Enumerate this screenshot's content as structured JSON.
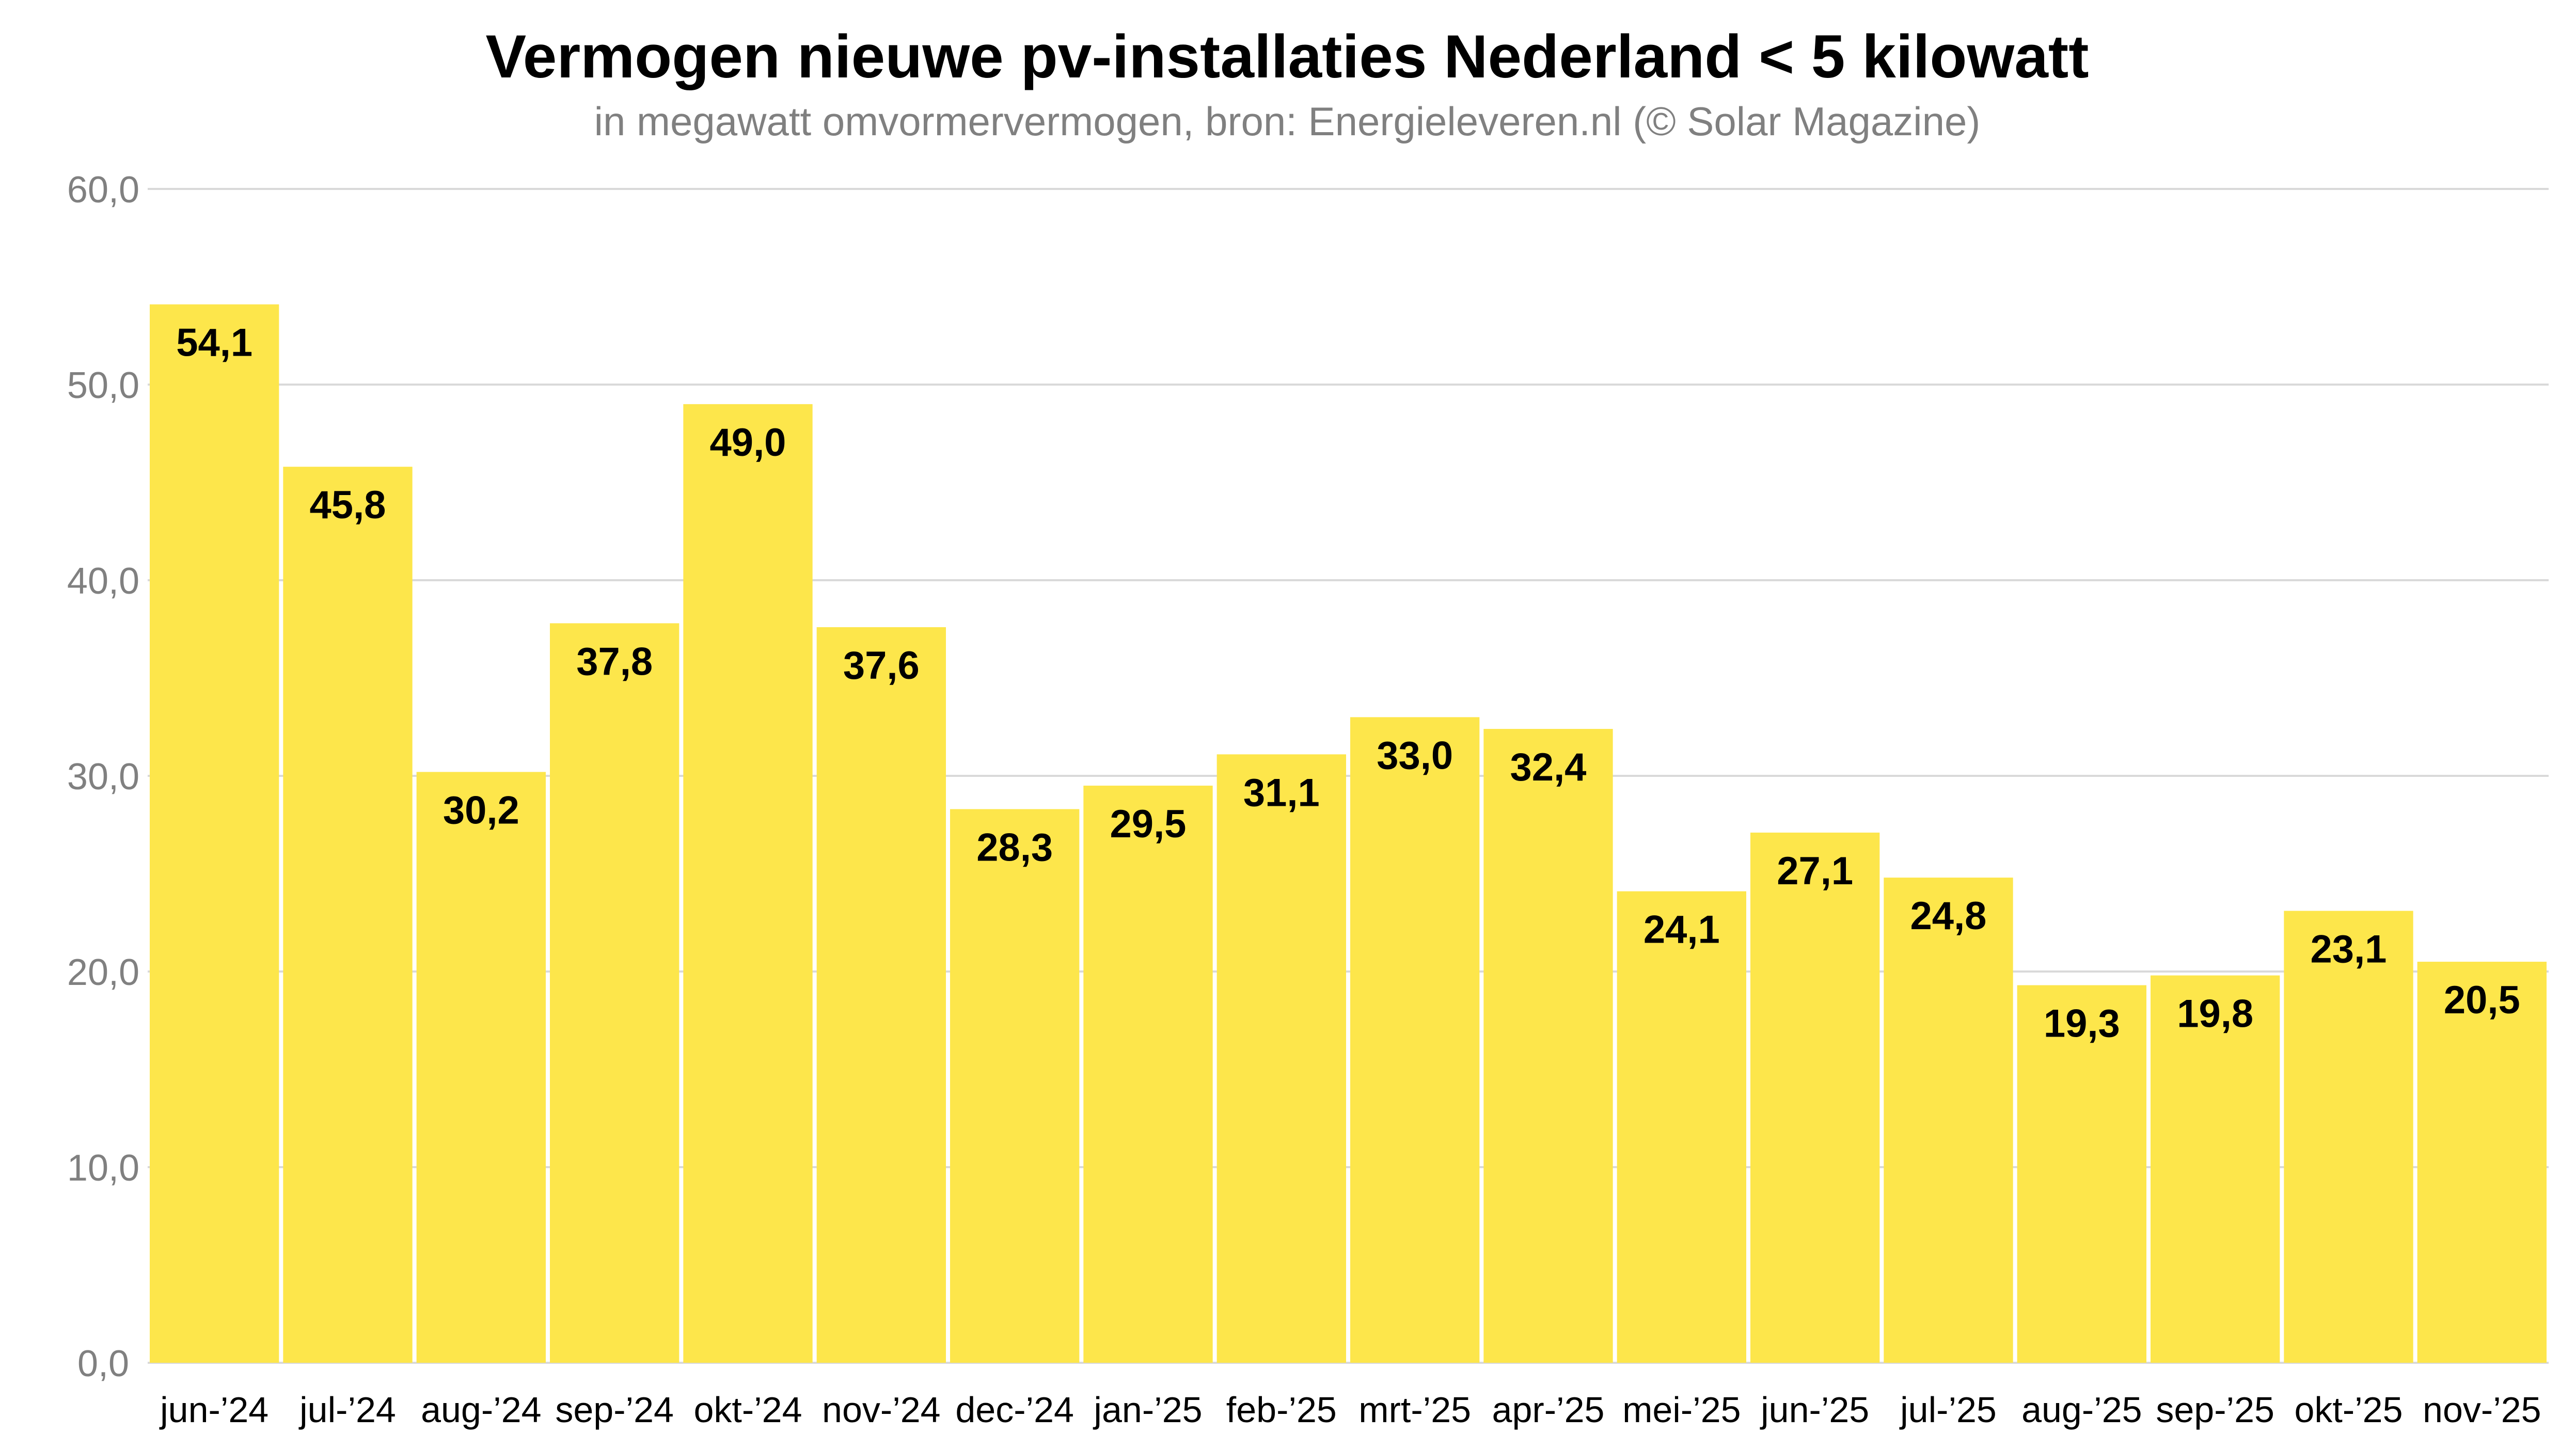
{
  "chart_data": {
    "type": "bar",
    "title": "Vermogen nieuwe pv-installaties Nederland < 5 kilowatt",
    "subtitle": "in megawatt omvormervermogen, bron: Energieleveren.nl (© Solar Magazine)",
    "xlabel": "",
    "ylabel": "",
    "ylim": [
      0,
      60
    ],
    "yticks": [
      0,
      10,
      20,
      30,
      40,
      50,
      60
    ],
    "ytick_labels": [
      "0,0",
      "10,0",
      "20,0",
      "30,0",
      "40,0",
      "50,0",
      "60,0"
    ],
    "grid": true,
    "categories": [
      "jun-’24",
      "jul-’24",
      "aug-’24",
      "sep-’24",
      "okt-’24",
      "nov-’24",
      "dec-’24",
      "jan-’25",
      "feb-’25",
      "mrt-’25",
      "apr-’25",
      "mei-’25",
      "jun-’25",
      "jul-’25",
      "aug-’25",
      "sep-’25",
      "okt-’25",
      "nov-’25"
    ],
    "values": [
      54.1,
      45.8,
      30.2,
      37.8,
      49.0,
      37.6,
      28.3,
      29.5,
      31.1,
      33.0,
      32.4,
      24.1,
      27.1,
      24.8,
      19.3,
      19.8,
      23.1,
      20.5
    ],
    "value_labels": [
      "54,1",
      "45,8",
      "30,2",
      "37,8",
      "49,0",
      "37,6",
      "28,3",
      "29,5",
      "31,1",
      "33,0",
      "32,4",
      "24,1",
      "27,1",
      "24,8",
      "19,3",
      "19,8",
      "23,1",
      "20,5"
    ],
    "colors": {
      "bar": "#FDE64B",
      "grid": "#D9D9D9",
      "axis_text": "#808080"
    }
  }
}
